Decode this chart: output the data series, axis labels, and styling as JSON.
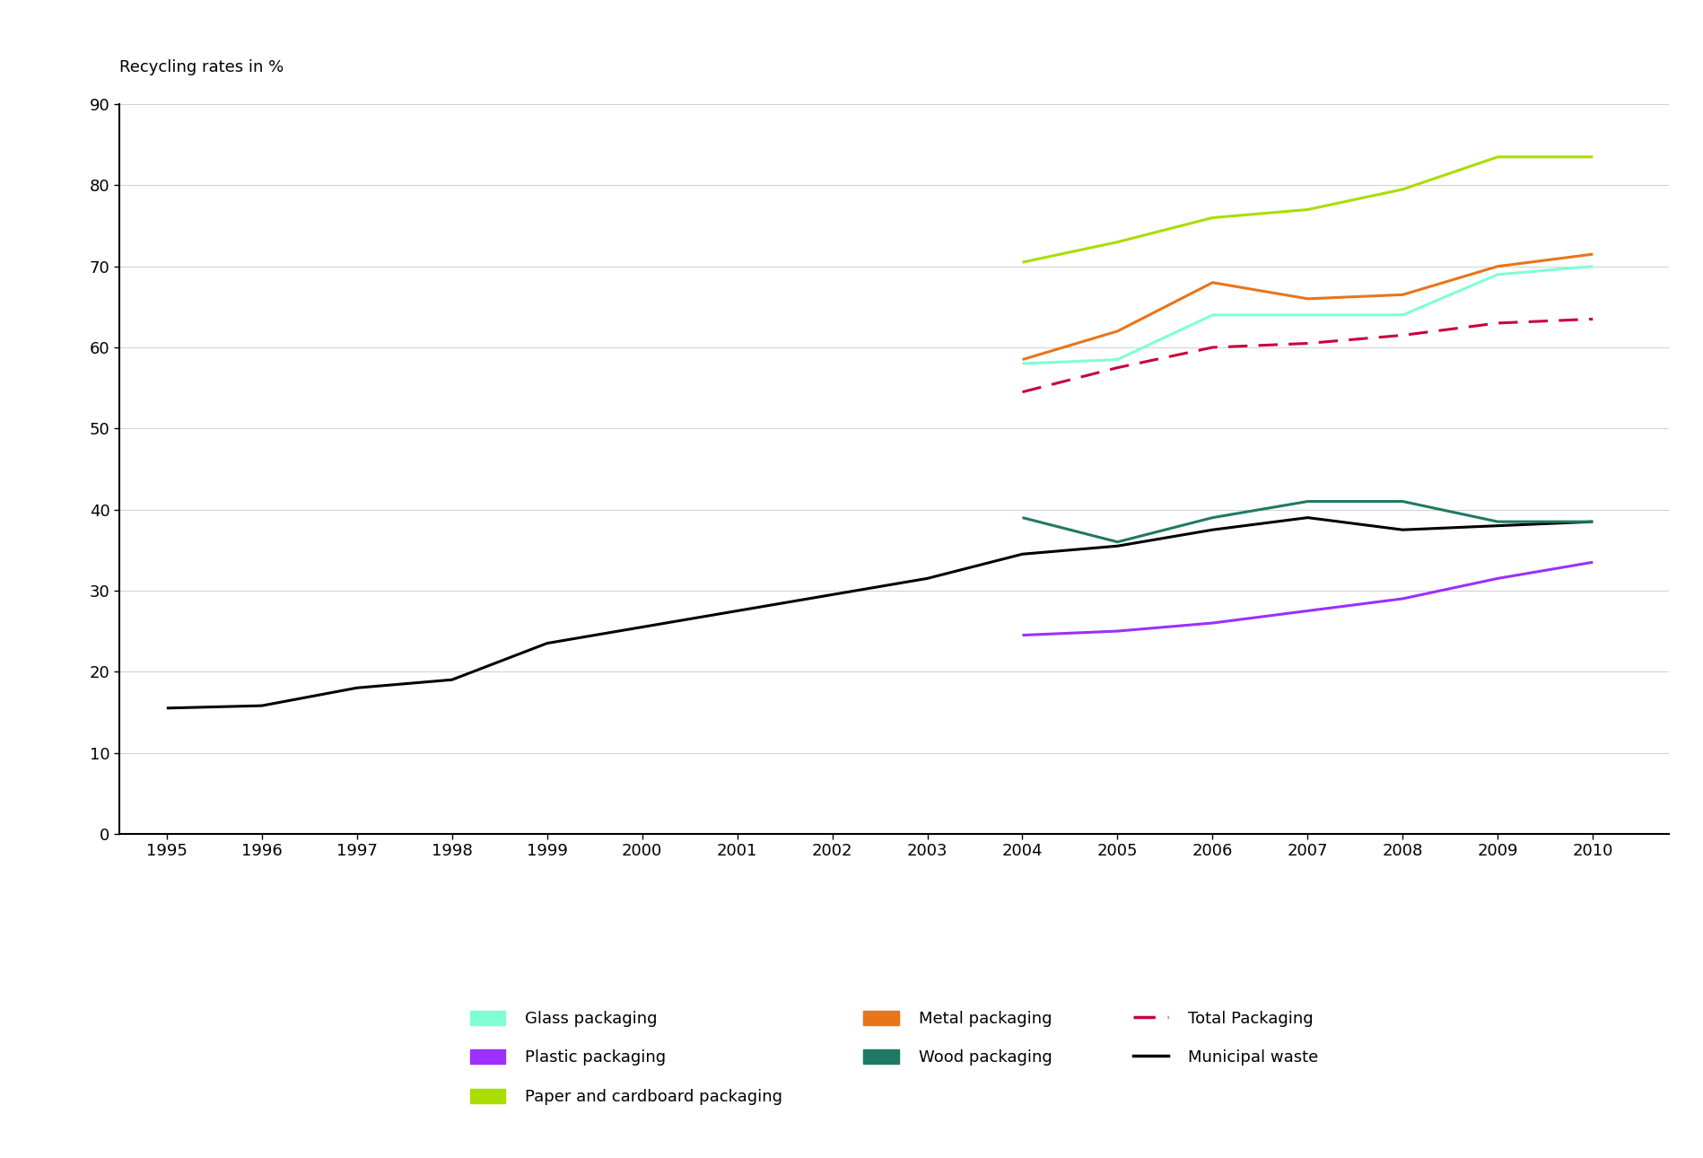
{
  "title": "Recycling rates in %",
  "years_municipal": [
    1995,
    1996,
    1997,
    1998,
    1999,
    2000,
    2001,
    2002,
    2003,
    2004,
    2005,
    2006,
    2007,
    2008,
    2009,
    2010
  ],
  "municipal_waste": [
    15.5,
    15.8,
    18.0,
    19.0,
    23.5,
    25.5,
    27.5,
    29.5,
    31.5,
    34.5,
    35.5,
    37.5,
    39.0,
    37.5,
    38.0,
    38.5
  ],
  "years_packaging": [
    2004,
    2005,
    2006,
    2007,
    2008,
    2009,
    2010
  ],
  "glass_packaging": [
    58.0,
    58.5,
    64.0,
    64.0,
    64.0,
    69.0,
    70.0
  ],
  "metal_packaging": [
    58.5,
    62.0,
    68.0,
    66.0,
    66.5,
    70.0,
    71.5
  ],
  "plastic_packaging": [
    24.5,
    25.0,
    26.0,
    27.5,
    29.0,
    31.5,
    33.5
  ],
  "wood_packaging": [
    39.0,
    36.0,
    39.0,
    41.0,
    41.0,
    38.5,
    38.5
  ],
  "paper_packaging": [
    70.5,
    73.0,
    76.0,
    77.0,
    79.5,
    83.5,
    83.5
  ],
  "total_packaging": [
    54.5,
    57.5,
    60.0,
    60.5,
    61.5,
    63.0,
    63.5
  ],
  "colors": {
    "glass": "#7fffd4",
    "metal": "#e8751a",
    "plastic": "#9b30ff",
    "wood": "#1e7a65",
    "paper": "#aadd00",
    "total": "#c8003c",
    "municipal": "#000000"
  },
  "ylim": [
    0,
    90
  ],
  "yticks": [
    0,
    10,
    20,
    30,
    40,
    50,
    60,
    70,
    80,
    90
  ],
  "xlim": [
    1994.5,
    2010.8
  ],
  "background_color": "#ffffff",
  "linewidth": 2.2
}
